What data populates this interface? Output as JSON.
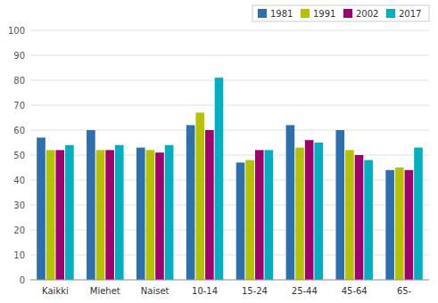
{
  "chart_data": {
    "type": "bar",
    "categories": [
      "Kaikki",
      "Miehet",
      "Naiset",
      "10-14",
      "15-24",
      "25-44",
      "45-64",
      "65-"
    ],
    "series": [
      {
        "name": "1981",
        "color": "#2e6fad",
        "values": [
          57,
          60,
          53,
          62,
          47,
          62,
          60,
          44
        ]
      },
      {
        "name": "1991",
        "color": "#b5c200",
        "values": [
          52,
          52,
          52,
          67,
          48,
          53,
          52,
          45
        ]
      },
      {
        "name": "2002",
        "color": "#a0006e",
        "values": [
          52,
          52,
          51,
          60,
          52,
          56,
          50,
          44
        ]
      },
      {
        "name": "2017",
        "color": "#00afc0",
        "values": [
          54,
          54,
          54,
          81,
          52,
          55,
          48,
          53
        ]
      }
    ],
    "ylim": [
      0,
      100
    ],
    "yticks": [
      0,
      10,
      20,
      30,
      40,
      50,
      60,
      70,
      80,
      90,
      100
    ],
    "grid": true,
    "legend": "upper right"
  }
}
